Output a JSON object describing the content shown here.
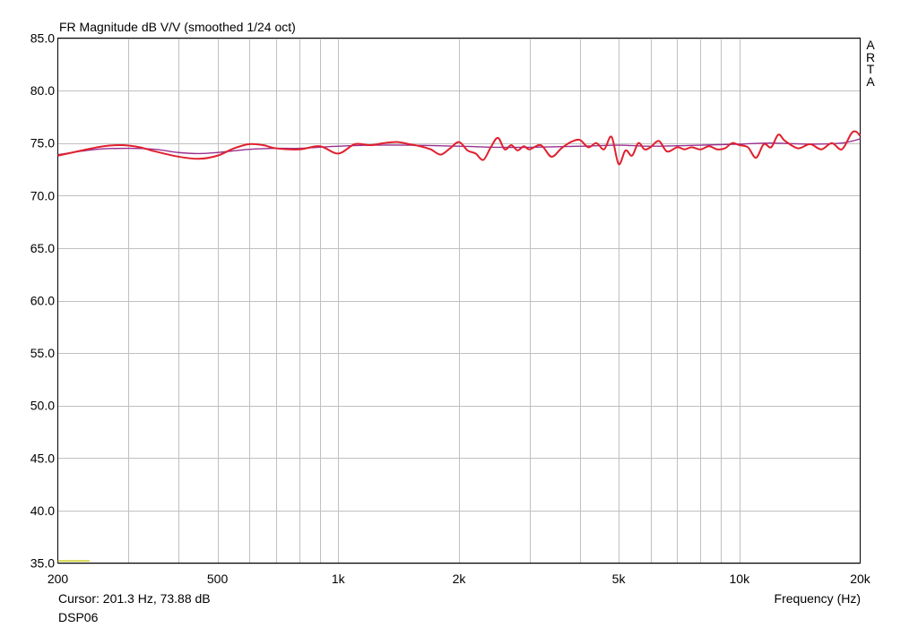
{
  "chart_data": {
    "type": "line",
    "title": "FR Magnitude dB V/V (smoothed 1/24 oct)",
    "xlabel": "Frequency (Hz)",
    "ylabel": "",
    "x_scale": "log",
    "xlim": [
      200,
      20000
    ],
    "ylim": [
      35,
      85
    ],
    "y_ticks": [
      35,
      40,
      45,
      50,
      55,
      60,
      65,
      70,
      75,
      80,
      85
    ],
    "y_tick_labels": [
      "35.0",
      "40.0",
      "45.0",
      "50.0",
      "55.0",
      "60.0",
      "65.0",
      "70.0",
      "75.0",
      "80.0",
      "85.0"
    ],
    "x_tick_labels": [
      {
        "value": 200,
        "label": "200"
      },
      {
        "value": 500,
        "label": "500"
      },
      {
        "value": 1000,
        "label": "1k"
      },
      {
        "value": 2000,
        "label": "2k"
      },
      {
        "value": 5000,
        "label": "5k"
      },
      {
        "value": 10000,
        "label": "10k"
      },
      {
        "value": 20000,
        "label": "20k"
      }
    ],
    "x_grid": [
      300,
      400,
      500,
      600,
      700,
      800,
      900,
      1000,
      2000,
      3000,
      4000,
      5000,
      6000,
      7000,
      8000,
      9000,
      10000
    ],
    "grid": true,
    "series": [
      {
        "color": "#e0202e",
        "x": [
          200,
          230,
          260,
          290,
          320,
          350,
          400,
          450,
          500,
          550,
          600,
          650,
          700,
          800,
          900,
          1000,
          1100,
          1200,
          1300,
          1400,
          1500,
          1600,
          1700,
          1800,
          1900,
          2000,
          2100,
          2200,
          2300,
          2400,
          2500,
          2600,
          2700,
          2800,
          2900,
          3000,
          3200,
          3400,
          3600,
          3800,
          4000,
          4200,
          4400,
          4600,
          4800,
          5000,
          5200,
          5400,
          5600,
          5800,
          6000,
          6300,
          6600,
          7000,
          7300,
          7600,
          8000,
          8400,
          8800,
          9200,
          9600,
          10000,
          10500,
          11000,
          11500,
          12000,
          12500,
          13000,
          14000,
          15000,
          16000,
          17000,
          18000,
          19000,
          19500,
          20000
        ],
        "y": [
          73.8,
          74.3,
          74.7,
          74.8,
          74.6,
          74.2,
          73.7,
          73.5,
          73.8,
          74.5,
          74.9,
          74.8,
          74.5,
          74.4,
          74.7,
          74.0,
          74.9,
          74.8,
          75.0,
          75.1,
          74.9,
          74.7,
          74.4,
          73.9,
          74.5,
          75.1,
          74.3,
          74.0,
          73.4,
          74.6,
          75.5,
          74.4,
          74.8,
          74.3,
          74.7,
          74.4,
          74.8,
          73.7,
          74.5,
          75.1,
          75.3,
          74.6,
          75.0,
          74.4,
          75.6,
          73.0,
          74.3,
          73.8,
          75.0,
          74.4,
          74.6,
          75.2,
          74.2,
          74.6,
          74.4,
          74.6,
          74.4,
          74.7,
          74.4,
          74.5,
          75.0,
          74.8,
          74.6,
          73.6,
          74.9,
          74.6,
          75.8,
          75.2,
          74.5,
          74.9,
          74.4,
          75.0,
          74.4,
          75.9,
          76.1,
          75.7
        ]
      },
      {
        "color": "#9a3090",
        "x": [
          200,
          250,
          300,
          350,
          400,
          450,
          500,
          600,
          700,
          800,
          1000,
          1200,
          1500,
          2000,
          2500,
          3000,
          4000,
          5000,
          6000,
          8000,
          10000,
          12000,
          15000,
          18000,
          20000
        ],
        "y": [
          73.9,
          74.4,
          74.5,
          74.4,
          74.1,
          74.0,
          74.1,
          74.4,
          74.5,
          74.5,
          74.7,
          74.8,
          74.8,
          74.7,
          74.6,
          74.6,
          74.7,
          74.8,
          74.7,
          74.8,
          74.9,
          75.0,
          74.9,
          75.0,
          75.4
        ]
      },
      {
        "color": "#c8c820",
        "x": [
          200,
          240
        ],
        "y": [
          35.2,
          35.2
        ]
      }
    ]
  },
  "cursor_readout": "Cursor: 201.3 Hz, 73.88 dB",
  "trace_name": "DSP06",
  "brand_letters": [
    "A",
    "R",
    "T",
    "A"
  ]
}
